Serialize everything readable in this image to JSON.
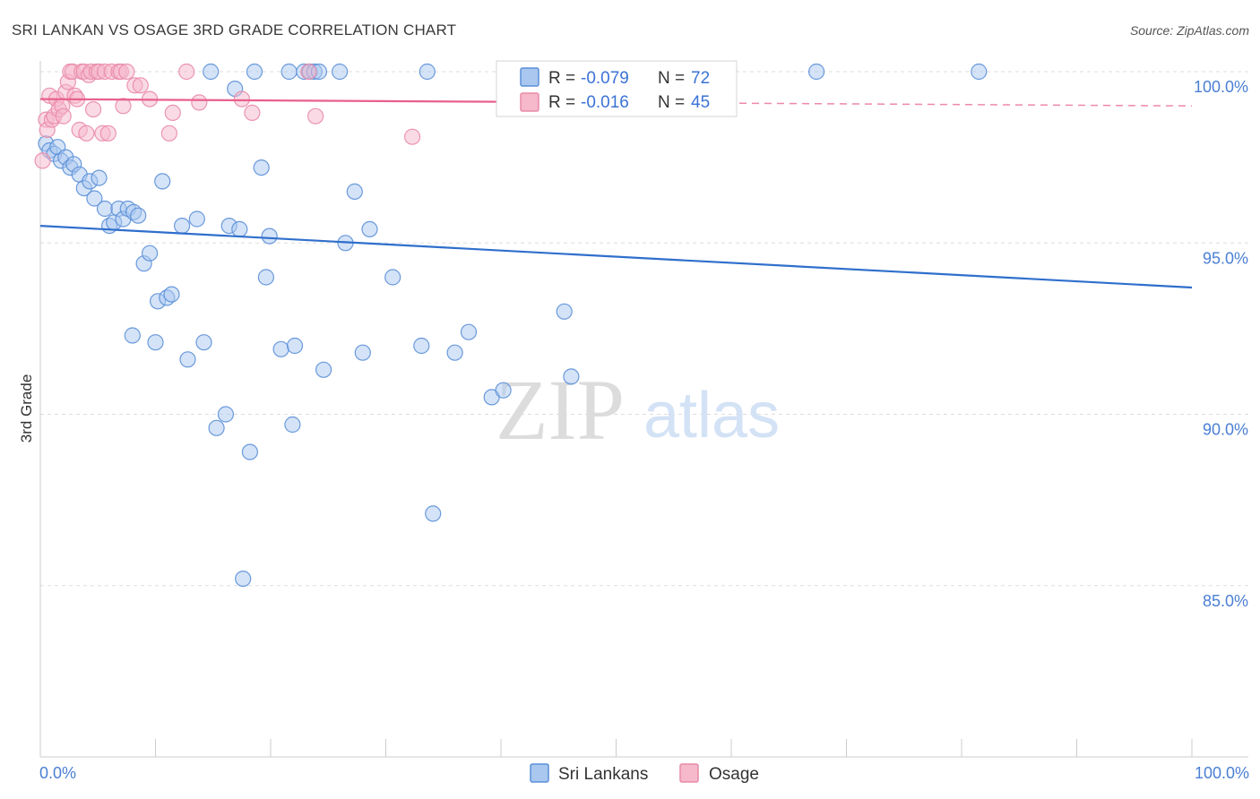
{
  "chart_data": {
    "type": "scatter",
    "title": "SRI LANKAN VS OSAGE 3RD GRADE CORRELATION CHART",
    "source": "Source: ZipAtlas.com",
    "ylabel": "3rd Grade",
    "xlim": [
      0,
      100
    ],
    "ylim": [
      80,
      100
    ],
    "x_tick_labels": [
      "0.0%",
      "100.0%"
    ],
    "y_ticks": [
      {
        "value": 100,
        "label": "100.0%"
      },
      {
        "value": 95,
        "label": "95.0%"
      },
      {
        "value": 90,
        "label": "90.0%"
      },
      {
        "value": 85,
        "label": "85.0%"
      }
    ],
    "watermark": {
      "zip": "ZIP",
      "atlas": "atlas"
    },
    "colors": {
      "blue_fill": "#a9c7ef",
      "blue_stroke": "#5b8fd8",
      "blue_line": "#2f6fcc",
      "pink_fill": "#f6b8cb",
      "pink_stroke": "#e98aa8",
      "pink_line": "#e8608c",
      "tick_text": "#4a7fd4"
    },
    "legend": {
      "r_label": "R =",
      "n_label": "N =",
      "entries": [
        {
          "r": "-0.079",
          "n": "72"
        },
        {
          "r": "-0.016",
          "n": "45"
        }
      ]
    },
    "series": [
      {
        "name": "Sri Lankans",
        "color": "blue",
        "trend": [
          [
            0,
            95.5
          ],
          [
            100,
            93.7
          ]
        ],
        "points": [
          [
            0.5,
            97.9
          ],
          [
            0.8,
            97.7
          ],
          [
            1.2,
            97.6
          ],
          [
            1.5,
            97.8
          ],
          [
            1.8,
            97.4
          ],
          [
            2.2,
            97.5
          ],
          [
            2.6,
            97.2
          ],
          [
            2.9,
            97.3
          ],
          [
            3.4,
            97.0
          ],
          [
            3.8,
            96.6
          ],
          [
            4.3,
            96.8
          ],
          [
            4.7,
            96.3
          ],
          [
            5.1,
            96.9
          ],
          [
            5.6,
            96.0
          ],
          [
            6.0,
            95.5
          ],
          [
            6.4,
            95.6
          ],
          [
            6.8,
            96.0
          ],
          [
            7.2,
            95.7
          ],
          [
            7.6,
            96.0
          ],
          [
            8.1,
            95.9
          ],
          [
            8.5,
            95.8
          ],
          [
            9.0,
            94.4
          ],
          [
            9.5,
            94.7
          ],
          [
            8.0,
            92.3
          ],
          [
            10.0,
            92.1
          ],
          [
            10.2,
            93.3
          ],
          [
            11.0,
            93.4
          ],
          [
            11.4,
            93.5
          ],
          [
            10.6,
            96.8
          ],
          [
            12.3,
            95.5
          ],
          [
            12.8,
            91.6
          ],
          [
            13.6,
            95.7
          ],
          [
            14.2,
            92.1
          ],
          [
            14.8,
            100.0
          ],
          [
            15.3,
            89.6
          ],
          [
            16.1,
            90.0
          ],
          [
            16.4,
            95.5
          ],
          [
            16.9,
            99.5
          ],
          [
            17.3,
            95.4
          ],
          [
            17.6,
            85.2
          ],
          [
            18.2,
            88.9
          ],
          [
            18.6,
            100.0
          ],
          [
            19.2,
            97.2
          ],
          [
            19.6,
            94.0
          ],
          [
            19.9,
            95.2
          ],
          [
            20.9,
            91.9
          ],
          [
            21.6,
            100.0
          ],
          [
            21.9,
            89.7
          ],
          [
            22.1,
            92.0
          ],
          [
            22.9,
            100.0
          ],
          [
            23.4,
            100.0
          ],
          [
            23.8,
            100.0
          ],
          [
            24.2,
            100.0
          ],
          [
            24.6,
            91.3
          ],
          [
            26.0,
            100.0
          ],
          [
            26.5,
            95.0
          ],
          [
            27.3,
            96.5
          ],
          [
            28.0,
            91.8
          ],
          [
            28.6,
            95.4
          ],
          [
            30.6,
            94.0
          ],
          [
            33.1,
            92.0
          ],
          [
            33.6,
            100.0
          ],
          [
            34.1,
            87.1
          ],
          [
            36.0,
            91.8
          ],
          [
            37.2,
            92.4
          ],
          [
            39.2,
            90.5
          ],
          [
            40.2,
            90.7
          ],
          [
            42.0,
            100.0
          ],
          [
            45.5,
            93.0
          ],
          [
            46.1,
            91.1
          ],
          [
            67.4,
            100.0
          ],
          [
            81.5,
            100.0
          ]
        ]
      },
      {
        "name": "Osage",
        "color": "pink",
        "trend": [
          [
            0,
            99.2
          ],
          [
            100,
            99.0
          ]
        ],
        "trend_solid_until": 40,
        "points": [
          [
            0.2,
            97.4
          ],
          [
            0.5,
            98.6
          ],
          [
            0.6,
            98.3
          ],
          [
            0.8,
            99.3
          ],
          [
            1.0,
            98.6
          ],
          [
            1.2,
            98.7
          ],
          [
            1.4,
            99.2
          ],
          [
            1.6,
            98.9
          ],
          [
            1.9,
            99.0
          ],
          [
            2.0,
            98.7
          ],
          [
            2.2,
            99.4
          ],
          [
            2.4,
            99.7
          ],
          [
            2.6,
            100.0
          ],
          [
            2.8,
            100.0
          ],
          [
            3.0,
            99.3
          ],
          [
            3.2,
            99.2
          ],
          [
            3.4,
            98.3
          ],
          [
            3.6,
            100.0
          ],
          [
            3.8,
            100.0
          ],
          [
            4.0,
            98.2
          ],
          [
            4.2,
            99.9
          ],
          [
            4.4,
            100.0
          ],
          [
            4.6,
            98.9
          ],
          [
            4.9,
            100.0
          ],
          [
            5.1,
            100.0
          ],
          [
            5.4,
            98.2
          ],
          [
            5.6,
            100.0
          ],
          [
            5.9,
            98.2
          ],
          [
            6.2,
            100.0
          ],
          [
            6.8,
            100.0
          ],
          [
            7.0,
            100.0
          ],
          [
            7.5,
            100.0
          ],
          [
            7.2,
            99.0
          ],
          [
            8.2,
            99.6
          ],
          [
            8.7,
            99.6
          ],
          [
            9.5,
            99.2
          ],
          [
            11.2,
            98.2
          ],
          [
            11.5,
            98.8
          ],
          [
            12.7,
            100.0
          ],
          [
            13.8,
            99.1
          ],
          [
            17.5,
            99.2
          ],
          [
            18.4,
            98.8
          ],
          [
            23.3,
            100.0
          ],
          [
            23.9,
            98.7
          ],
          [
            32.3,
            98.1
          ]
        ]
      }
    ]
  }
}
